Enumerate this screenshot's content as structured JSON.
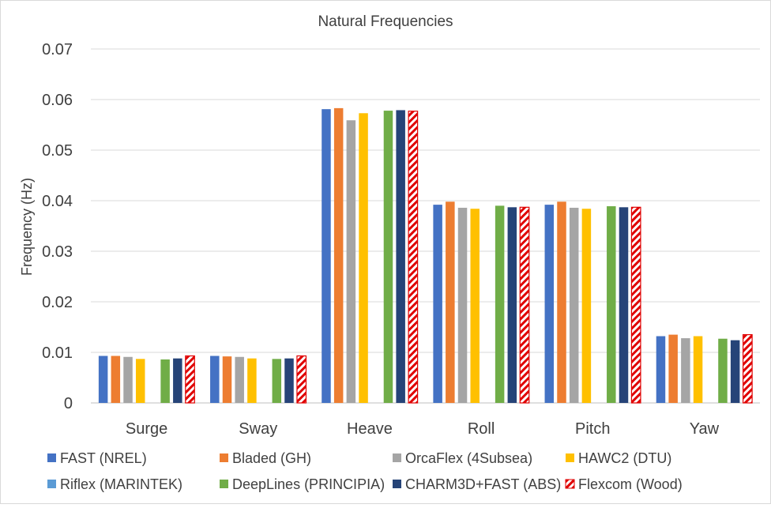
{
  "chart_data": {
    "type": "bar",
    "title": "Natural Frequencies",
    "xlabel": "",
    "ylabel": "Frequency (Hz)",
    "ylim": [
      0,
      0.07
    ],
    "yticks": [
      "0",
      "0.01",
      "0.02",
      "0.03",
      "0.04",
      "0.05",
      "0.06",
      "0.07"
    ],
    "ytick_values": [
      0,
      0.01,
      0.02,
      0.03,
      0.04,
      0.05,
      0.06,
      0.07
    ],
    "grid": true,
    "legend_position": "bottom",
    "categories": [
      "Surge",
      "Sway",
      "Heave",
      "Roll",
      "Pitch",
      "Yaw"
    ],
    "series": [
      {
        "name": "FAST (NREL)",
        "color": "#4472C4",
        "pattern": "solid",
        "values": [
          0.0093,
          0.0093,
          0.0581,
          0.0392,
          0.0392,
          0.0132
        ]
      },
      {
        "name": "Bladed (GH)",
        "color": "#ED7D31",
        "pattern": "solid",
        "values": [
          0.0093,
          0.0092,
          0.0583,
          0.0398,
          0.0398,
          0.0135
        ]
      },
      {
        "name": "OrcaFlex (4Subsea)",
        "color": "#A5A5A5",
        "pattern": "solid",
        "values": [
          0.0091,
          0.0091,
          0.0559,
          0.0386,
          0.0386,
          0.0128
        ]
      },
      {
        "name": "HAWC2 (DTU)",
        "color": "#FFC000",
        "pattern": "solid",
        "values": [
          0.0087,
          0.0088,
          0.0573,
          0.0384,
          0.0384,
          0.0132
        ]
      },
      {
        "name": "Riflex (MARINTEK)",
        "color": "#5B9BD5",
        "pattern": "solid",
        "values": [
          null,
          null,
          null,
          null,
          null,
          null
        ]
      },
      {
        "name": "DeepLines (PRINCIPIA)",
        "color": "#70AD47",
        "pattern": "solid",
        "values": [
          0.0086,
          0.0087,
          0.0578,
          0.039,
          0.0389,
          0.0127
        ]
      },
      {
        "name": "CHARM3D+FAST (ABS)",
        "color": "#264478",
        "pattern": "solid",
        "values": [
          0.0088,
          0.0088,
          0.0579,
          0.0387,
          0.0387,
          0.0124
        ]
      },
      {
        "name": "Flexcom (Wood)",
        "color": "#E00000",
        "pattern": "hatch",
        "values": [
          0.0093,
          0.0093,
          0.0577,
          0.0387,
          0.0387,
          0.0135
        ]
      }
    ]
  }
}
